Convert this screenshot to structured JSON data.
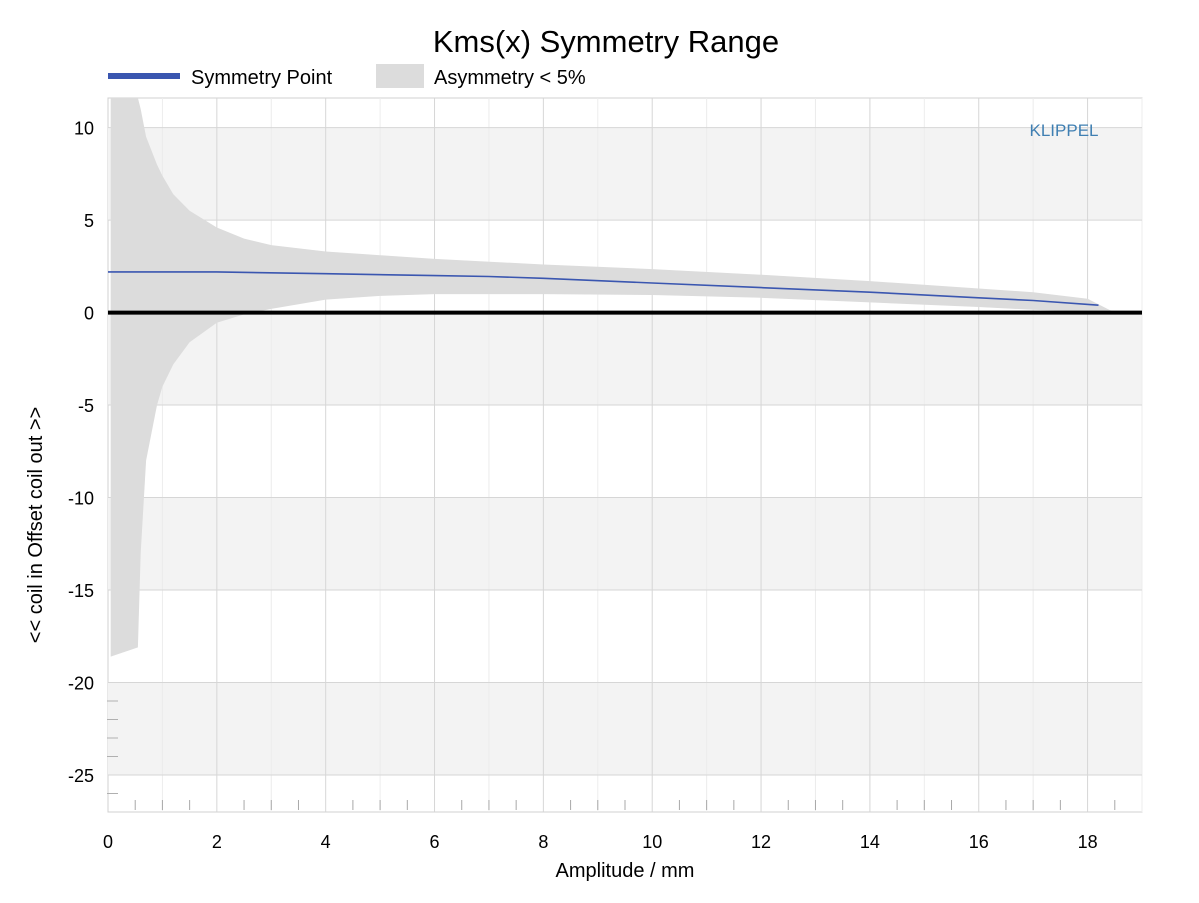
{
  "chart_data": {
    "type": "area",
    "title": "Kms(x) Symmetry Range",
    "xlabel": "Amplitude / mm",
    "ylabel": "<< coil in Offset coil out >>",
    "xlim": [
      0,
      19
    ],
    "ylim": [
      -27,
      11.6
    ],
    "x_ticks": [
      0,
      2,
      4,
      6,
      8,
      10,
      12,
      14,
      16,
      18
    ],
    "y_ticks": [
      10,
      5,
      0,
      -5,
      -10,
      -15,
      -20,
      -25
    ],
    "grid": true,
    "legend_position": "top-left, above plot",
    "watermark": "KLIPPEL",
    "colors": {
      "symmetry_point": "#3a56b0",
      "asymmetry_band": "#dcdcdc",
      "zero_line": "#000000",
      "watermark": "#3f7fb2"
    },
    "series": [
      {
        "name": "Symmetry Point",
        "kind": "line",
        "x": [
          0,
          2,
          4,
          6,
          7,
          8,
          10,
          12,
          14,
          16,
          17,
          18.2
        ],
        "y": [
          2.2,
          2.2,
          2.1,
          2.0,
          1.95,
          1.85,
          1.6,
          1.35,
          1.1,
          0.8,
          0.65,
          0.4
        ]
      },
      {
        "name": "Asymmetry < 5%",
        "kind": "band",
        "x": [
          0.05,
          0.55,
          0.6,
          0.7,
          0.9,
          1.0,
          1.2,
          1.5,
          2.0,
          2.5,
          3.0,
          4.0,
          5.0,
          6.0,
          8.0,
          10.0,
          12.0,
          14.0,
          16.0,
          17.0,
          18.0,
          18.5
        ],
        "upper": [
          11.6,
          11.6,
          11.0,
          9.5,
          8.0,
          7.4,
          6.4,
          5.5,
          4.6,
          4.0,
          3.65,
          3.3,
          3.1,
          2.9,
          2.6,
          2.35,
          2.05,
          1.7,
          1.3,
          1.1,
          0.75,
          0.0
        ],
        "lower": [
          -18.6,
          -18.1,
          -13.0,
          -8.0,
          -5.0,
          -4.0,
          -2.8,
          -1.6,
          -0.55,
          -0.1,
          0.2,
          0.7,
          0.9,
          1.0,
          1.0,
          0.95,
          0.8,
          0.55,
          0.3,
          0.15,
          0.05,
          0.0
        ]
      },
      {
        "name": "",
        "kind": "reference",
        "x": [
          0,
          19
        ],
        "y": [
          0,
          0
        ]
      }
    ]
  }
}
